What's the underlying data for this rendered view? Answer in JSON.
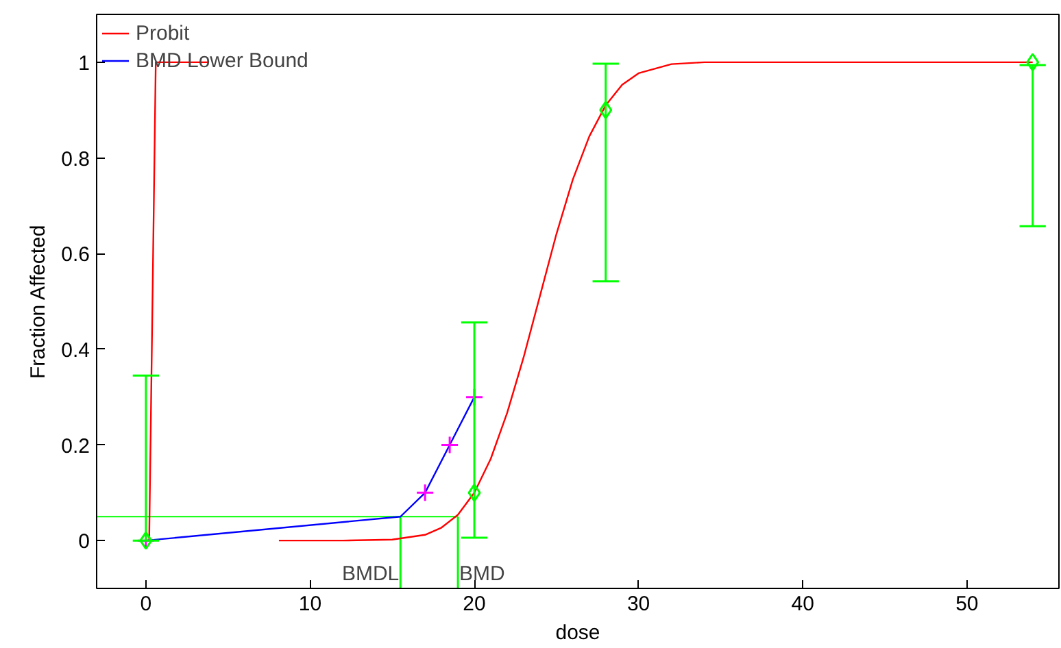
{
  "chart_data": {
    "type": "line",
    "xlabel": "dose",
    "ylabel": "Fraction Affected",
    "xlim": [
      -3,
      55.6
    ],
    "ylim": [
      -0.1,
      1.1
    ],
    "xticks": [
      0,
      10,
      20,
      30,
      40,
      50
    ],
    "yticks": [
      0,
      0.2,
      0.4,
      0.6,
      0.8,
      1
    ],
    "grid": false,
    "legend": "top left",
    "series": [
      {
        "name": "Probit",
        "color": "#ff0000",
        "marker": "none",
        "x": [
          0.2,
          0.6,
          3.8,
          null,
          8.1,
          12,
          15,
          17,
          18,
          19,
          20,
          21,
          22,
          23,
          24,
          25,
          26,
          27,
          28,
          29,
          30,
          32,
          34,
          40,
          54
        ],
        "values": [
          0,
          1,
          1,
          null,
          0,
          0,
          0.002,
          0.012,
          0.027,
          0.054,
          0.1,
          0.171,
          0.267,
          0.383,
          0.512,
          0.641,
          0.755,
          0.845,
          0.91,
          0.953,
          0.977,
          0.996,
          1,
          1,
          1
        ]
      },
      {
        "name": "BMD Lower Bound",
        "color": "#0000ff",
        "marker": "none",
        "x": [
          0,
          15.5,
          17,
          18.5,
          20
        ],
        "values": [
          0,
          0.05,
          0.1,
          0.2,
          0.3
        ]
      },
      {
        "type": "scatter",
        "color": "#ff00ff",
        "marker": "cross",
        "x": [
          0,
          17,
          18.5,
          20
        ],
        "values": [
          0,
          0.1,
          0.2,
          0.3
        ]
      },
      {
        "type": "scatter",
        "color": "#00ff00",
        "marker": "diamond",
        "x": [
          0,
          20,
          28,
          54
        ],
        "values": [
          0,
          0.1,
          0.9,
          1
        ],
        "errors": [
          [
            0,
            0.345
          ],
          [
            0.006,
            0.456
          ],
          [
            0.542,
            0.997
          ],
          [
            0.657,
            0.994
          ]
        ]
      }
    ],
    "ref_lines": [
      {
        "axis": "y",
        "value": 0.05,
        "color": "#00ff00"
      },
      {
        "axis": "x",
        "value": 15.5,
        "label": "BMDL",
        "color": "#00ff00"
      },
      {
        "axis": "x",
        "value": 19,
        "label": "BMD",
        "color": "#00ff00"
      }
    ]
  }
}
